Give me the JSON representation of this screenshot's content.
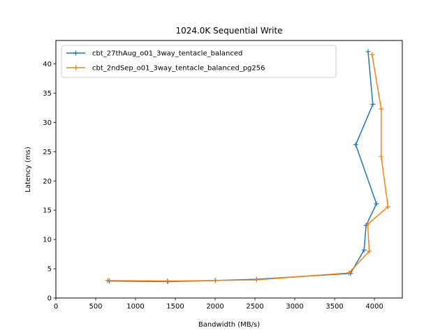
{
  "chart_data": {
    "type": "line",
    "title": "1024.0K  Sequential Write",
    "xlabel": "Bandwidth (MB/s)",
    "ylabel": "Latency (ms)",
    "xlim": [
      0,
      4350
    ],
    "ylim": [
      0,
      44
    ],
    "xticks": [
      0,
      500,
      1000,
      1500,
      2000,
      2500,
      3000,
      3500,
      4000
    ],
    "yticks": [
      0,
      5,
      10,
      15,
      20,
      25,
      30,
      35,
      40
    ],
    "grid": false,
    "legend_position": "top-left",
    "series": [
      {
        "name": "cbt_27thAug_o01_3way_tentacle_balanced",
        "color": "#1f77b4",
        "marker": "plus",
        "x": [
          670,
          1405,
          2005,
          2520,
          3700,
          3870,
          3895,
          4025,
          3765,
          3980,
          3920
        ],
        "y": [
          2.9,
          2.8,
          3.0,
          3.2,
          4.2,
          8.2,
          12.4,
          16.1,
          26.2,
          33.1,
          42.1
        ]
      },
      {
        "name": "cbt_2ndSep_o01_3way_tentacle_balanced_pg256",
        "color": "#ff7f0e",
        "marker": "plus",
        "x": [
          650,
          1400,
          2000,
          2520,
          3680,
          3935,
          3915,
          4170,
          4085,
          4085,
          3970
        ],
        "y": [
          3.0,
          2.9,
          3.0,
          3.1,
          4.3,
          8.0,
          12.6,
          15.6,
          24.2,
          32.3,
          41.6
        ]
      }
    ]
  }
}
